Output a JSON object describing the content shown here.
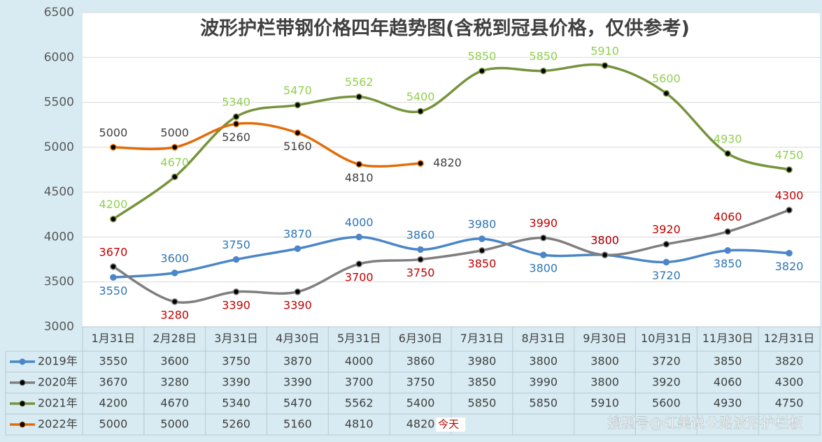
{
  "chart_data": {
    "type": "line",
    "title": "波形护栏带钢价格四年趋势图(含税到冠县价格，仅供参考)",
    "categories": [
      "1月31日",
      "2月28日",
      "3月31日",
      "4月30日",
      "5月31日",
      "6月30日",
      "7月31日",
      "8月31日",
      "9月30日",
      "10月31日",
      "11月30日",
      "12月31日"
    ],
    "series": [
      {
        "name": "2019年",
        "color": "#4a86c8",
        "label_color": "#2e75b6",
        "values": [
          3550,
          3600,
          3750,
          3870,
          4000,
          3860,
          3980,
          3800,
          3800,
          3720,
          3850,
          3820
        ]
      },
      {
        "name": "2020年",
        "color": "#7f7f7f",
        "label_color": "#c00000",
        "values": [
          3670,
          3280,
          3390,
          3390,
          3700,
          3750,
          3850,
          3990,
          3800,
          3920,
          4060,
          4300
        ]
      },
      {
        "name": "2021年",
        "color": "#77933c",
        "label_color": "#92d050",
        "values": [
          4200,
          4670,
          5340,
          5470,
          5562,
          5400,
          5850,
          5850,
          5910,
          5600,
          4930,
          4750
        ]
      },
      {
        "name": "2022年",
        "color": "#e36c09",
        "label_color": "#404040",
        "values": [
          5000,
          5000,
          5260,
          5160,
          4810,
          4820,
          null,
          null,
          null,
          null,
          null,
          null
        ]
      }
    ],
    "ylim": [
      3000,
      6500
    ],
    "yticks": [
      3000,
      3500,
      4000,
      4500,
      5000,
      5500,
      6000,
      6500
    ],
    "grid": true,
    "annotations": [
      "今天",
      "搜狐号@红美说公路波形护栏板"
    ]
  }
}
